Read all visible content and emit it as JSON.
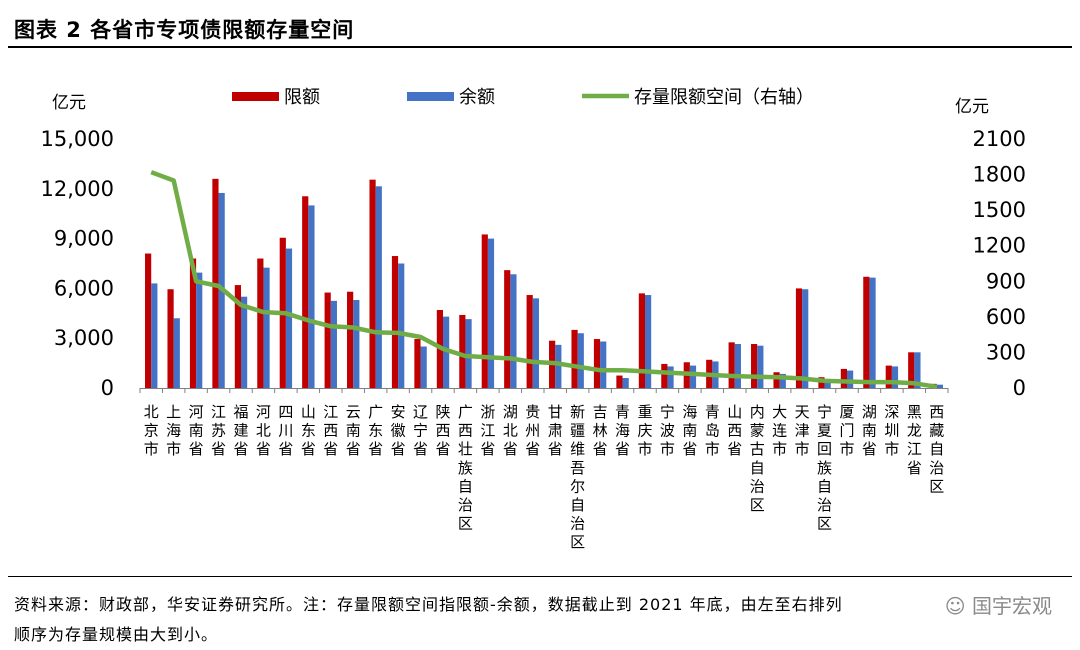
{
  "figure": {
    "title": "图表 2 各省市专项债限额存量空间",
    "source_line1": "资料来源：财政部，华安证券研究所。注：存量限额空间指限额-余额，数据截止到 2021 年底，由左至右排列",
    "source_line2": "顺序为存量规模由大到小。",
    "watermark": "☺ 国宇宏观"
  },
  "colors": {
    "limit": "#C00000",
    "balance": "#4472C4",
    "space": "#70AD47"
  },
  "chart_data": {
    "type": "bar",
    "categories": [
      "北京市",
      "上海市",
      "河南省",
      "江苏省",
      "福建省",
      "河北省",
      "四川省",
      "山东省",
      "江西省",
      "云南省",
      "广东省",
      "安徽省",
      "辽宁省",
      "陕西省",
      "广西壮族自治区",
      "浙江省",
      "湖北省",
      "贵州省",
      "甘肃省",
      "新疆维吾尔自治区",
      "吉林省",
      "青海省",
      "重庆市",
      "宁波市",
      "海南省",
      "青岛市",
      "山西省",
      "内蒙古自治区",
      "大连市",
      "天津市",
      "宁夏回族自治区",
      "厦门市",
      "湖南省",
      "深圳市",
      "黑龙江省",
      "西藏自治区"
    ],
    "series": [
      {
        "name": "限额",
        "axis": "left",
        "values": [
          8100,
          5950,
          7800,
          12600,
          6200,
          7800,
          9050,
          11550,
          5750,
          5800,
          12550,
          7950,
          2950,
          4700,
          4400,
          9250,
          7100,
          5600,
          2850,
          3500,
          2950,
          750,
          5700,
          1450,
          1550,
          1700,
          2750,
          2650,
          950,
          6000,
          650,
          1150,
          6700,
          1350,
          2150,
          250
        ]
      },
      {
        "name": "余额",
        "axis": "left",
        "values": [
          6300,
          4200,
          6950,
          11750,
          5500,
          7250,
          8400,
          11000,
          5250,
          5300,
          12150,
          7500,
          2500,
          4300,
          4150,
          9000,
          6850,
          5400,
          2600,
          3300,
          2800,
          600,
          5600,
          1300,
          1350,
          1600,
          2650,
          2550,
          850,
          5950,
          550,
          1050,
          6650,
          1300,
          2150,
          200
        ]
      },
      {
        "name": "存量限额空间（右轴）",
        "axis": "right",
        "type": "line",
        "values": [
          1820,
          1750,
          900,
          860,
          700,
          640,
          630,
          570,
          520,
          510,
          470,
          465,
          430,
          330,
          270,
          260,
          250,
          220,
          210,
          180,
          150,
          150,
          140,
          130,
          120,
          110,
          100,
          95,
          90,
          80,
          60,
          55,
          50,
          50,
          40,
          10
        ]
      }
    ],
    "left_axis": {
      "unit": "亿元",
      "min": 0,
      "max": 15000,
      "ticks": [
        0,
        3000,
        6000,
        9000,
        12000,
        15000
      ],
      "tick_labels": [
        "0",
        "3,000",
        "6,000",
        "9,000",
        "12,000",
        "15,000"
      ]
    },
    "right_axis": {
      "unit": "亿元",
      "min": 0,
      "max": 2100,
      "ticks": [
        0,
        300,
        600,
        900,
        1200,
        1500,
        1800,
        2100
      ],
      "tick_labels": [
        "0",
        "300",
        "600",
        "900",
        "1200",
        "1500",
        "1800",
        "2100"
      ]
    },
    "legend_position": "top",
    "grid": false
  }
}
